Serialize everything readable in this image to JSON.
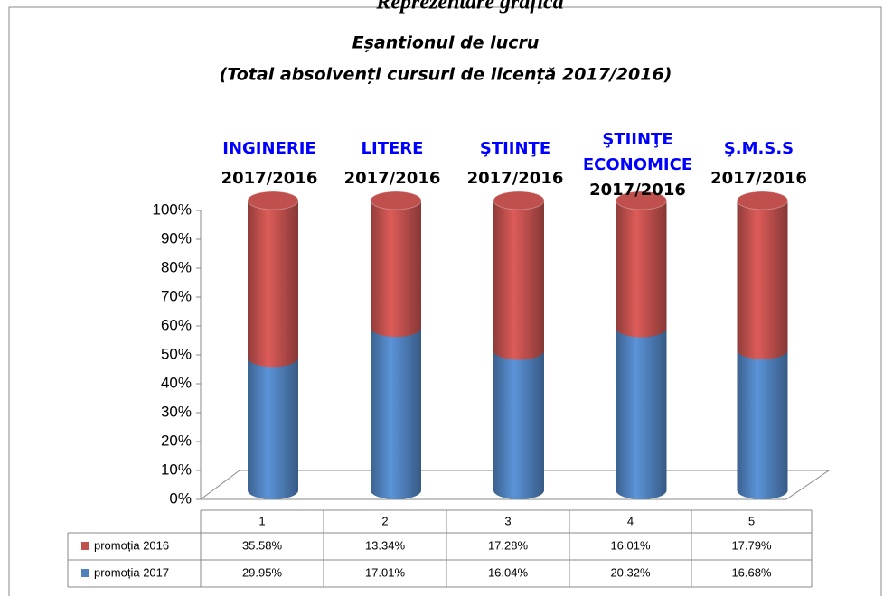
{
  "chart_data": {
    "type": "bar",
    "stacking": "percent",
    "heading": "Reprezentare grafică",
    "title": "Eșantionul de lucru",
    "subtitle": "(Total absolvenți cursuri de licență 2017/2016)",
    "categories": [
      "1",
      "2",
      "3",
      "4",
      "5"
    ],
    "annotations": [
      {
        "lines": [
          "INGINERIE"
        ],
        "note": "2017/2016"
      },
      {
        "lines": [
          "LITERE"
        ],
        "note": "2017/2016"
      },
      {
        "lines": [
          "ŞTIINŢE"
        ],
        "note": "2017/2016"
      },
      {
        "lines": [
          "ŞTIINŢE",
          "ECONOMICE"
        ],
        "note": "2017/2016"
      },
      {
        "lines": [
          "Ş.M.S.S"
        ],
        "note": "2017/2016"
      }
    ],
    "series": [
      {
        "name": "promoția 2016",
        "color": "#c0504d",
        "values": [
          35.58,
          13.34,
          17.28,
          16.01,
          17.79
        ],
        "value_labels": [
          "35.58%",
          "13.34%",
          "17.28%",
          "16.01%",
          "17.79%"
        ]
      },
      {
        "name": "promoția 2017",
        "color": "#4f81bd",
        "values": [
          29.95,
          17.01,
          16.04,
          20.32,
          16.68
        ],
        "value_labels": [
          "29.95%",
          "17.01%",
          "16.04%",
          "20.32%",
          "16.68%"
        ]
      }
    ],
    "ylim": [
      0,
      100
    ],
    "yticks": [
      {
        "value": 0,
        "label": "0%"
      },
      {
        "value": 10,
        "label": "10%"
      },
      {
        "value": 20,
        "label": "20%"
      },
      {
        "value": 30,
        "label": "30%"
      },
      {
        "value": 40,
        "label": "40%"
      },
      {
        "value": 50,
        "label": "50%"
      },
      {
        "value": 60,
        "label": "60%"
      },
      {
        "value": 70,
        "label": "70%"
      },
      {
        "value": 80,
        "label": "80%"
      },
      {
        "value": 90,
        "label": "90%"
      },
      {
        "value": 100,
        "label": "100%"
      }
    ],
    "annotation_colors": {
      "lines": "#0000ff",
      "note": "#000000"
    }
  }
}
